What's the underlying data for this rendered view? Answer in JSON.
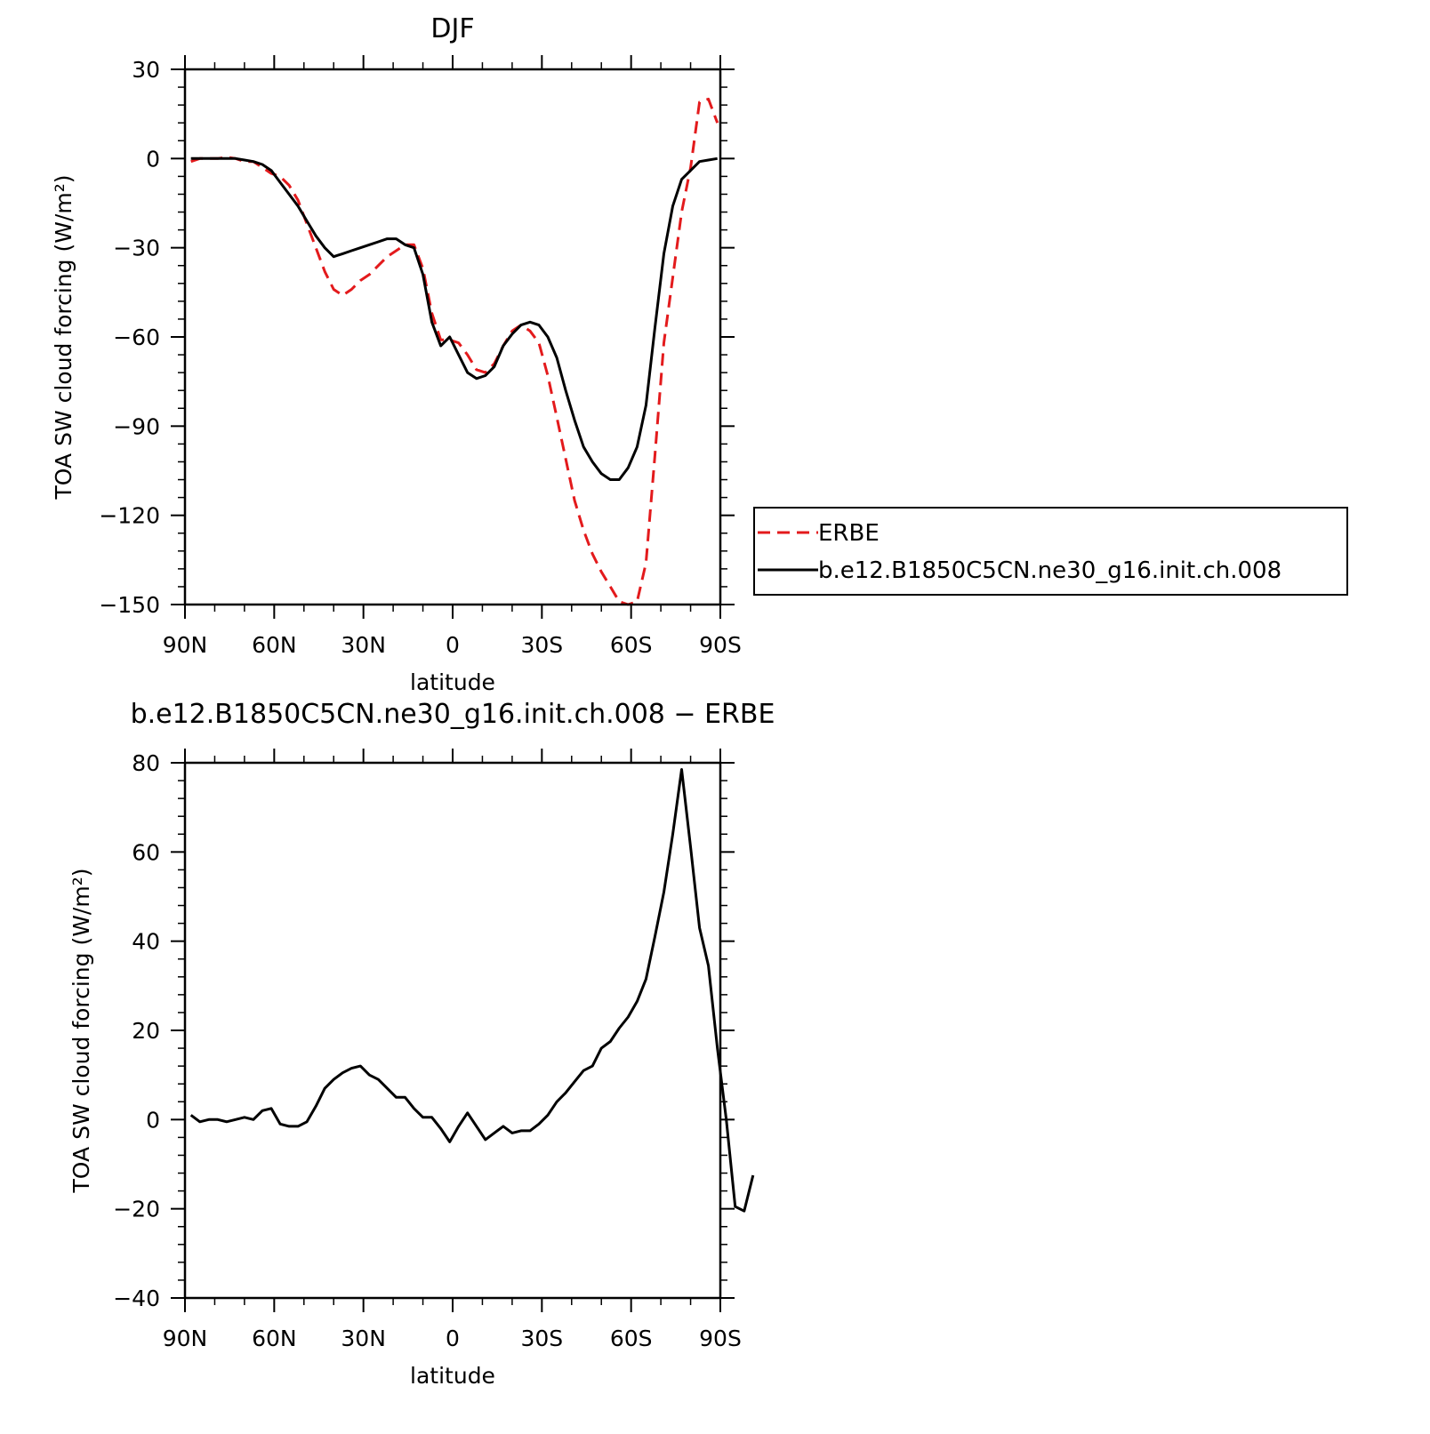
{
  "chart_data": [
    {
      "type": "line",
      "title": "DJF",
      "xlabel": "latitude",
      "ylabel": "TOA SW cloud forcing (W/m²)",
      "xlim": [
        90,
        -90
      ],
      "ylim": [
        -150,
        30
      ],
      "yticks": [
        30,
        0,
        -30,
        -60,
        -90,
        -120,
        -150
      ],
      "xticks": [
        {
          "value": 90,
          "label": "90N"
        },
        {
          "value": 60,
          "label": "60N"
        },
        {
          "value": 30,
          "label": "30N"
        },
        {
          "value": 0,
          "label": "0"
        },
        {
          "value": -30,
          "label": "30S"
        },
        {
          "value": -60,
          "label": "60S"
        },
        {
          "value": -90,
          "label": "90S"
        }
      ],
      "legend": {
        "placement": "right",
        "entries": [
          {
            "label": "ERBE",
            "color": "#e31a1c",
            "dash": "dashed"
          },
          {
            "label": "b.e12.B1850C5CN.ne30_g16.init.ch.008",
            "color": "#000000",
            "dash": "solid"
          }
        ]
      },
      "series": [
        {
          "name": "ERBE",
          "color": "#e31a1c",
          "dash": "dashed",
          "points": [
            [
              88,
              -1
            ],
            [
              85,
              0
            ],
            [
              82,
              0
            ],
            [
              79,
              0
            ],
            [
              76,
              0.5
            ],
            [
              73,
              0
            ],
            [
              70,
              -1
            ],
            [
              67,
              -1
            ],
            [
              64,
              -3
            ],
            [
              61,
              -5
            ],
            [
              58,
              -6
            ],
            [
              55,
              -9
            ],
            [
              52,
              -14
            ],
            [
              49,
              -22
            ],
            [
              46,
              -30
            ],
            [
              43,
              -38
            ],
            [
              40,
              -44
            ],
            [
              37,
              -46
            ],
            [
              34,
              -44
            ],
            [
              31,
              -41
            ],
            [
              28,
              -39
            ],
            [
              25,
              -36
            ],
            [
              22,
              -33
            ],
            [
              19,
              -31
            ],
            [
              16,
              -29
            ],
            [
              13,
              -29
            ],
            [
              10,
              -37
            ],
            [
              7,
              -52
            ],
            [
              4,
              -61
            ],
            [
              1,
              -61
            ],
            [
              -2,
              -62
            ],
            [
              -5,
              -66
            ],
            [
              -8,
              -71
            ],
            [
              -11,
              -72
            ],
            [
              -14,
              -69
            ],
            [
              -17,
              -63
            ],
            [
              -20,
              -58
            ],
            [
              -23,
              -56
            ],
            [
              -26,
              -58
            ],
            [
              -29,
              -62
            ],
            [
              -32,
              -73
            ],
            [
              -35,
              -87
            ],
            [
              -38,
              -101
            ],
            [
              -41,
              -115
            ],
            [
              -44,
              -125
            ],
            [
              -47,
              -133
            ],
            [
              -50,
              -139
            ],
            [
              -53,
              -144
            ],
            [
              -56,
              -149
            ],
            [
              -59,
              -150
            ],
            [
              -62,
              -149
            ],
            [
              -65,
              -136
            ],
            [
              -68,
              -100
            ],
            [
              -71,
              -62
            ],
            [
              -74,
              -40
            ],
            [
              -77,
              -18
            ],
            [
              -80,
              -3
            ],
            [
              -83,
              19
            ],
            [
              -86,
              20
            ],
            [
              -89,
              12
            ]
          ]
        },
        {
          "name": "b.e12.B1850C5CN.ne30_g16.init.ch.008",
          "color": "#000000",
          "dash": "solid",
          "points": [
            [
              88,
              0
            ],
            [
              85,
              0
            ],
            [
              82,
              0
            ],
            [
              79,
              0
            ],
            [
              76,
              0
            ],
            [
              73,
              0
            ],
            [
              70,
              -0.5
            ],
            [
              67,
              -1
            ],
            [
              64,
              -2
            ],
            [
              61,
              -4
            ],
            [
              58,
              -8
            ],
            [
              55,
              -12
            ],
            [
              52,
              -16
            ],
            [
              49,
              -21
            ],
            [
              46,
              -26
            ],
            [
              43,
              -30
            ],
            [
              40,
              -33
            ],
            [
              37,
              -32
            ],
            [
              34,
              -31
            ],
            [
              31,
              -30
            ],
            [
              28,
              -29
            ],
            [
              25,
              -28
            ],
            [
              22,
              -27
            ],
            [
              19,
              -27
            ],
            [
              16,
              -29
            ],
            [
              13,
              -30
            ],
            [
              10,
              -39
            ],
            [
              7,
              -55
            ],
            [
              4,
              -63
            ],
            [
              1,
              -60
            ],
            [
              -2,
              -66
            ],
            [
              -5,
              -72
            ],
            [
              -8,
              -74
            ],
            [
              -11,
              -73
            ],
            [
              -14,
              -70
            ],
            [
              -17,
              -63
            ],
            [
              -20,
              -59
            ],
            [
              -23,
              -56
            ],
            [
              -26,
              -55
            ],
            [
              -29,
              -56
            ],
            [
              -32,
              -60
            ],
            [
              -35,
              -67
            ],
            [
              -38,
              -78
            ],
            [
              -41,
              -88
            ],
            [
              -44,
              -97
            ],
            [
              -47,
              -102
            ],
            [
              -50,
              -106
            ],
            [
              -53,
              -108
            ],
            [
              -56,
              -108
            ],
            [
              -59,
              -104
            ],
            [
              -62,
              -97
            ],
            [
              -65,
              -83
            ],
            [
              -68,
              -57
            ],
            [
              -71,
              -32
            ],
            [
              -74,
              -16
            ],
            [
              -77,
              -7
            ],
            [
              -80,
              -4
            ],
            [
              -83,
              -1
            ],
            [
              -86,
              -0.5
            ],
            [
              -89,
              0
            ]
          ]
        }
      ]
    },
    {
      "type": "line",
      "title": "b.e12.B1850C5CN.ne30_g16.init.ch.008 − ERBE",
      "xlabel": "latitude",
      "ylabel": "TOA SW cloud forcing (W/m²)",
      "xlim": [
        90,
        -90
      ],
      "ylim": [
        -40,
        80
      ],
      "yticks": [
        80,
        60,
        40,
        20,
        0,
        -20,
        -40
      ],
      "xticks": [
        {
          "value": 90,
          "label": "90N"
        },
        {
          "value": 60,
          "label": "60N"
        },
        {
          "value": 30,
          "label": "30N"
        },
        {
          "value": 0,
          "label": "0"
        },
        {
          "value": -30,
          "label": "30S"
        },
        {
          "value": -60,
          "label": "60S"
        },
        {
          "value": -90,
          "label": "90S"
        }
      ],
      "series": [
        {
          "color": "#000000",
          "dash": "solid",
          "points": [
            [
              88,
              1
            ],
            [
              85,
              -0.5
            ],
            [
              82,
              0
            ],
            [
              79,
              0
            ],
            [
              76,
              -0.5
            ],
            [
              73,
              0
            ],
            [
              70,
              0.5
            ],
            [
              67,
              0
            ],
            [
              64,
              2
            ],
            [
              61,
              2.5
            ],
            [
              58,
              -1
            ],
            [
              55,
              -1.5
            ],
            [
              52,
              -1.5
            ],
            [
              49,
              -0.5
            ],
            [
              46,
              3
            ],
            [
              43,
              7
            ],
            [
              40,
              9
            ],
            [
              37,
              10.5
            ],
            [
              34,
              11.5
            ],
            [
              31,
              12
            ],
            [
              28,
              10
            ],
            [
              25,
              9
            ],
            [
              22,
              7
            ],
            [
              19,
              5
            ],
            [
              16,
              5
            ],
            [
              13,
              2.5
            ],
            [
              10,
              0.5
            ],
            [
              7,
              0.5
            ],
            [
              4,
              -2
            ],
            [
              1,
              -5
            ],
            [
              -2,
              -1.5
            ],
            [
              -5,
              1.5
            ],
            [
              -8,
              -1.5
            ],
            [
              -11,
              -4.5
            ],
            [
              -14,
              -3
            ],
            [
              -17,
              -1.5
            ],
            [
              -20,
              -3
            ],
            [
              -23,
              -2.5
            ],
            [
              -26,
              -2.5
            ],
            [
              -29,
              -1
            ],
            [
              -32,
              1
            ],
            [
              -35,
              4
            ],
            [
              -38,
              6
            ],
            [
              -41,
              8.5
            ],
            [
              -44,
              11
            ],
            [
              -47,
              12
            ],
            [
              -50,
              16
            ],
            [
              -53,
              17.5
            ],
            [
              -56,
              20.5
            ],
            [
              -59,
              23
            ],
            [
              -62,
              26.5
            ],
            [
              -65,
              31.5
            ],
            [
              -68,
              41
            ],
            [
              -71,
              51
            ],
            [
              -74,
              64
            ],
            [
              -77,
              78.5
            ],
            [
              -80,
              61
            ],
            [
              -83,
              43
            ],
            [
              -86,
              34.5
            ],
            [
              -89,
              16
            ],
            [
              -92,
              0
            ],
            [
              -95,
              -19.5
            ],
            [
              -98,
              -20.5
            ],
            [
              -101,
              -12.5
            ]
          ]
        }
      ]
    }
  ]
}
